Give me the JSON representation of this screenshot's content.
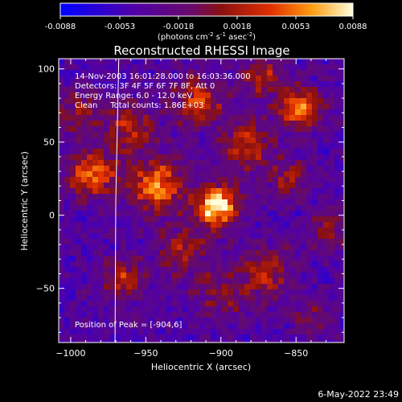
{
  "chart_data": {
    "type": "heatmap",
    "title": "Reconstructed RHESSI Image",
    "xlabel": "Heliocentric X (arcsec)",
    "ylabel": "Heliocentric Y (arcsec)",
    "xlim": [
      -1008,
      -818
    ],
    "ylim": [
      -87,
      107
    ],
    "xticks": [
      -1000,
      -950,
      -900,
      -850
    ],
    "yticks": [
      -50,
      0,
      50,
      100
    ],
    "colorbar": {
      "ticks": [
        "-0.0088",
        "-0.0053",
        "-0.0018",
        "0.0018",
        "0.0053",
        "0.0088"
      ],
      "unit_main": "(photons cm",
      "unit_e1": "-2",
      "unit_mid": " s",
      "unit_e2": "-1",
      "unit_end": " asec",
      "unit_e3": "-2",
      "unit_close": ")",
      "range": [
        -0.0088,
        0.0088
      ]
    },
    "annotations": [
      "14-Nov-2003 16:01:28.000 to 16:03:36.000",
      "Detectors: 3F 4F 5F 6F 7F 8F, Att 0",
      "Energy Range: 6.0 - 12.0 keV",
      "Clean     Total counts: 1.86E+03"
    ],
    "peak_label": "Position of Peak = [-904,6]",
    "limb_line_x": -970,
    "sources": [
      {
        "x": -903,
        "y": 6,
        "v": 1.0,
        "sigma": 10
      },
      {
        "x": -943,
        "y": 20,
        "v": 0.75,
        "sigma": 12
      },
      {
        "x": -985,
        "y": 28,
        "v": 0.7,
        "sigma": 11
      },
      {
        "x": -848,
        "y": 73,
        "v": 0.7,
        "sigma": 10
      },
      {
        "x": -915,
        "y": 78,
        "v": 0.55,
        "sigma": 11
      },
      {
        "x": -883,
        "y": 48,
        "v": 0.5,
        "sigma": 12
      },
      {
        "x": -960,
        "y": 60,
        "v": 0.45,
        "sigma": 13
      },
      {
        "x": -873,
        "y": 95,
        "v": 0.5,
        "sigma": 9
      },
      {
        "x": -925,
        "y": -25,
        "v": 0.4,
        "sigma": 12
      },
      {
        "x": -965,
        "y": -45,
        "v": 0.45,
        "sigma": 10
      },
      {
        "x": -870,
        "y": -40,
        "v": 0.45,
        "sigma": 12
      },
      {
        "x": -855,
        "y": 25,
        "v": 0.35,
        "sigma": 10
      },
      {
        "x": -900,
        "y": -55,
        "v": 0.3,
        "sigma": 12
      },
      {
        "x": -828,
        "y": -10,
        "v": 0.3,
        "sigma": 10
      },
      {
        "x": -995,
        "y": 70,
        "v": 0.35,
        "sigma": 10
      },
      {
        "x": -840,
        "y": -70,
        "v": 0.25,
        "sigma": 10
      }
    ]
  },
  "footer": {
    "timestamp": "6-May-2022 23:49"
  }
}
